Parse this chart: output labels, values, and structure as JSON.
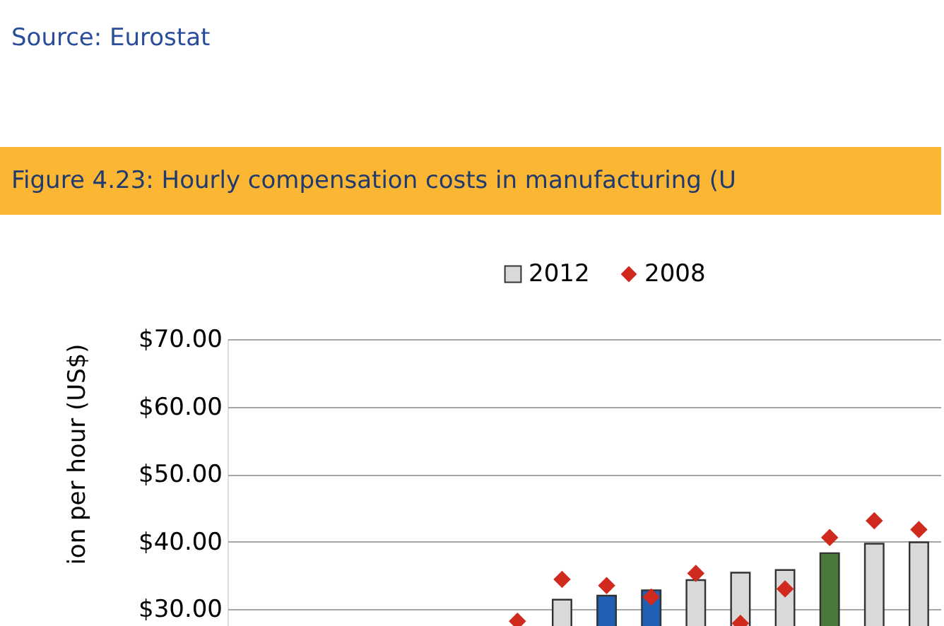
{
  "chart_data": {
    "type": "bar",
    "title": "Figure 4.23: Hourly compensation costs in manufacturing (U",
    "ylabel": "ion per hour (US$)",
    "annotations": [
      "Source: Eurostat"
    ],
    "categories": [
      null,
      null,
      null,
      null,
      null,
      null,
      null,
      null,
      null,
      null,
      null,
      null,
      null,
      null,
      null,
      null
    ],
    "series": [
      {
        "name": "2012",
        "color": "#d9d9d9",
        "colors": [
          "#d9d9d9",
          "#d9d9d9",
          "#d9d9d9",
          "#d9d9d9",
          "#d9d9d9",
          "#d9d9d9",
          "#d9d9d9",
          "#d9d9d9",
          "#1f5fb4",
          "#1f5fb4",
          "#d9d9d9",
          "#d9d9d9",
          "#d9d9d9",
          "#4a7a3a",
          "#d9d9d9",
          "#d9d9d9"
        ],
        "values": [
          null,
          null,
          null,
          null,
          null,
          null,
          null,
          31.4,
          32.0,
          32.8,
          34.3,
          35.4,
          35.8,
          38.3,
          39.7,
          39.9
        ]
      },
      {
        "name": "2008",
        "type": "scatter",
        "color": "#d02a1e",
        "marker": "diamond",
        "values": [
          null,
          null,
          null,
          null,
          null,
          null,
          28.2,
          34.4,
          33.5,
          31.8,
          35.3,
          27.9,
          33.0,
          40.6,
          43.1,
          41.8
        ]
      }
    ],
    "ylim": [
      27.5,
      70
    ],
    "yticks": [
      {
        "value": 30,
        "label": "$30.00"
      },
      {
        "value": 40,
        "label": "$40.00"
      },
      {
        "value": 50,
        "label": "$50.00"
      },
      {
        "value": 60,
        "label": "$60.00"
      },
      {
        "value": 70,
        "label": "$70.00"
      }
    ],
    "grid": "y",
    "legend": "top",
    "tick_labels": "y"
  }
}
